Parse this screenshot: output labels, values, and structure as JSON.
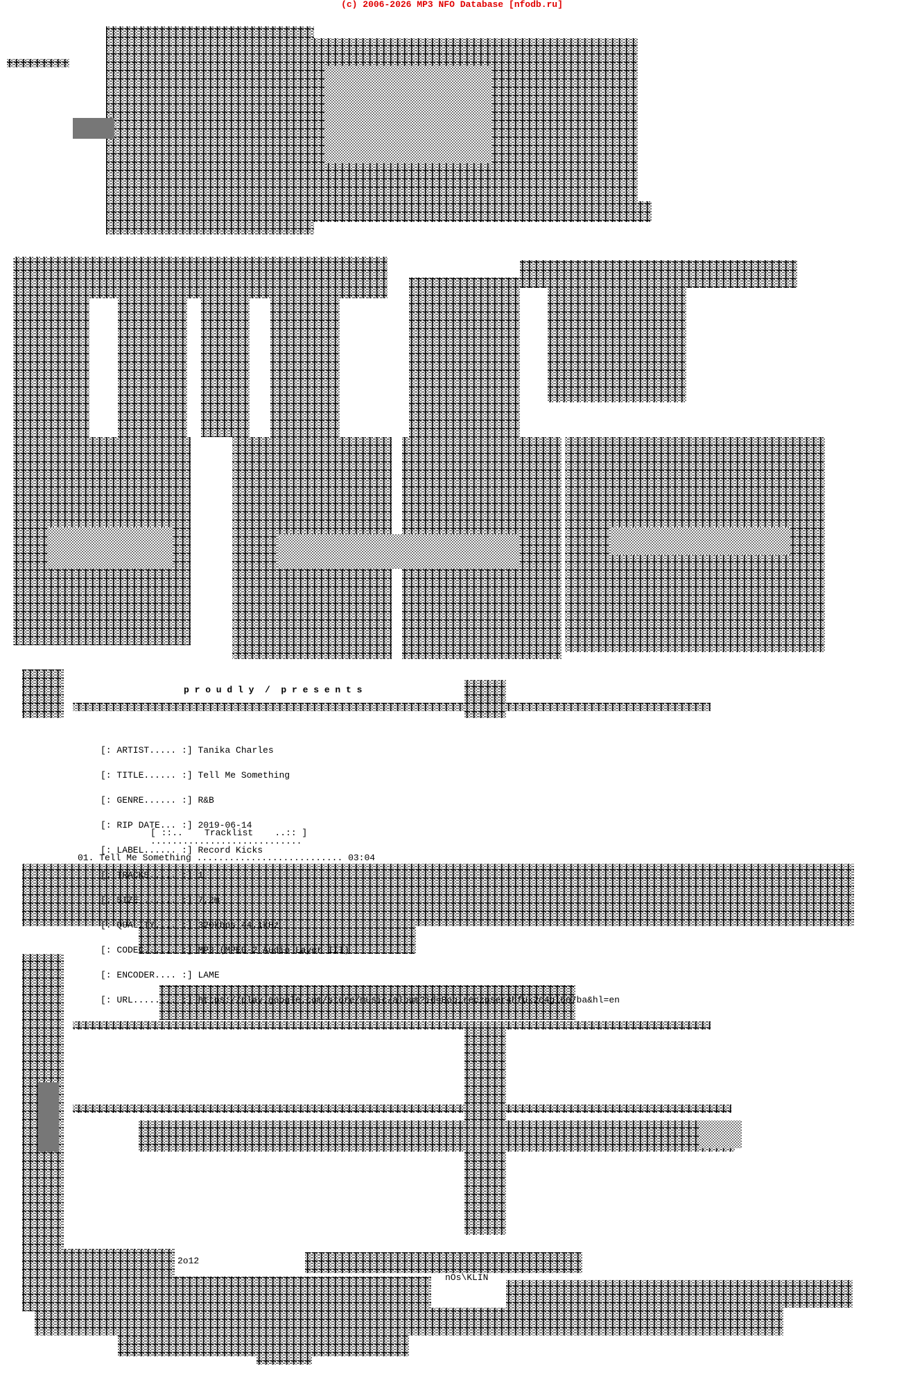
{
  "header": {
    "copyright": "(c) 2006-2026 MP3 NFO Database [nfodb.ru]"
  },
  "intro": {
    "presents": "p r o u d l y  /  p r e s e n t s"
  },
  "info": [
    {
      "label": "[: ARTIST..... :]",
      "value": "Tanika Charles"
    },
    {
      "label": "[: TITLE...... :]",
      "value": "Tell Me Something"
    },
    {
      "label": "[: GENRE...... :]",
      "value": "R&B"
    },
    {
      "label": "[: RIP DATE... :]",
      "value": "2019-06-14"
    },
    {
      "label": "[: LABEL...... :]",
      "value": "Record Kicks"
    },
    {
      "label": "[: TRACKS..... :]",
      "value": "1"
    },
    {
      "label": "[: SIZE....... :]",
      "value": "7,2m"
    },
    {
      "label": "[: QUALITY.... :]",
      "value": "320kbps 44.1kHz"
    },
    {
      "label": "[: CODEC...... :]",
      "value": "MP3 (MPEG-2 Audio Layer III)"
    },
    {
      "label": "[: ENCODER.... :]",
      "value": "LAME"
    },
    {
      "label": "[: URL........ :]",
      "value": "https://play.google.com/store/music/album?id=Boqireczpser4hfuk2c4gl6o7ba&hl=en"
    }
  ],
  "tracklist": {
    "heading": "[ ::..    Tracklist    ..:: ]",
    "underline": "............................",
    "tracks": [
      {
        "line": "01. Tell Me Something ........................... 03:04"
      }
    ]
  },
  "footer_art": {
    "year": "2o12",
    "signature": "nOs\\KLIN"
  },
  "colors": {
    "header": "#e00000",
    "art": "#888888"
  }
}
